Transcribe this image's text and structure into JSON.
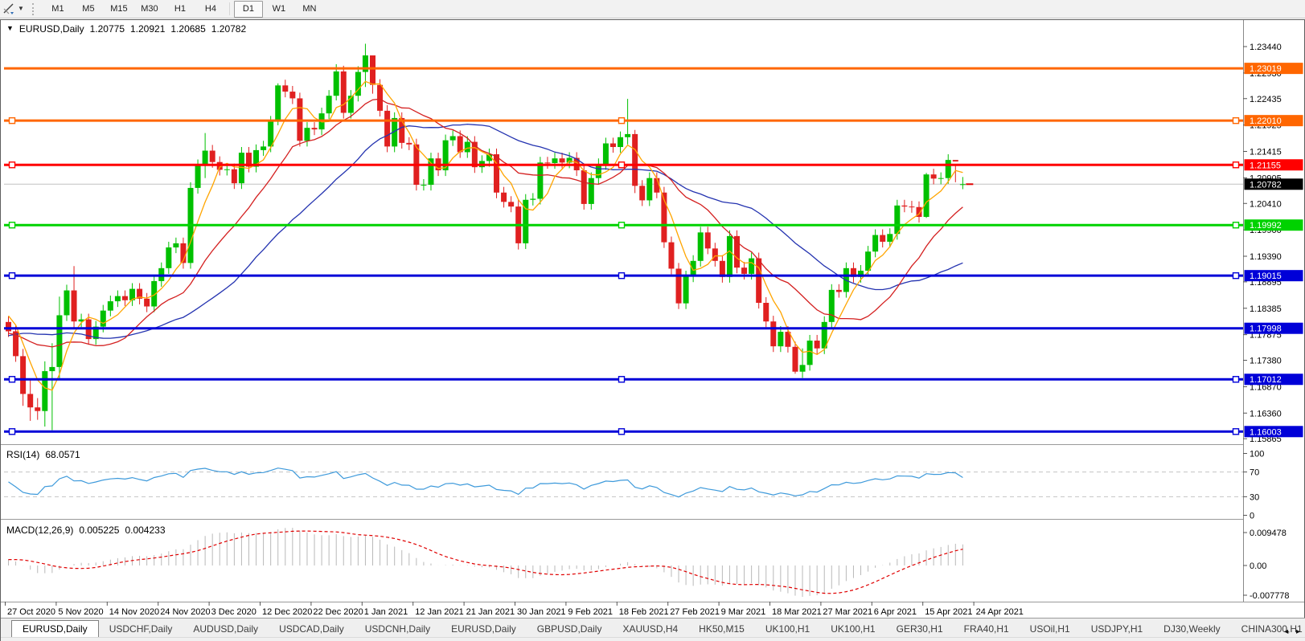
{
  "toolbar": {
    "tool_button": {
      "icon": "trendline-tool-icon",
      "dropdown_arrow": "▼"
    },
    "timeframes": [
      {
        "label": "M1",
        "active": false
      },
      {
        "label": "M5",
        "active": false
      },
      {
        "label": "M15",
        "active": false
      },
      {
        "label": "M30",
        "active": false
      },
      {
        "label": "H1",
        "active": false
      },
      {
        "label": "H4",
        "active": false
      },
      {
        "label": "D1",
        "active": true
      },
      {
        "label": "W1",
        "active": false
      },
      {
        "label": "MN",
        "active": false
      }
    ]
  },
  "chart_window": {
    "title": {
      "dropdown_arrow": "▼",
      "symbol_period": "EURUSD,Daily",
      "open": "1.20775",
      "high": "1.20921",
      "low": "1.20685",
      "close": "1.20782"
    }
  },
  "indicators": {
    "rsi": {
      "label": "RSI(14)",
      "value": "68.0571",
      "axis_labels": [
        "100",
        "70",
        "30",
        "0"
      ],
      "axis_values": [
        100,
        70,
        30,
        0
      ],
      "levels": [
        70,
        30
      ],
      "range": [
        0,
        100
      ],
      "line_color": "#3e9adb"
    },
    "macd": {
      "label": "MACD(12,26,9)",
      "main_value": "0.005225",
      "signal_value": "0.004233",
      "axis_labels": [
        "0.009478",
        "0.00",
        "-0.007778"
      ],
      "hist_color": "#b9b9b9",
      "signal_color": "#e00000"
    }
  },
  "chart_data": {
    "type": "candlestick",
    "symbol": "EURUSD",
    "period": "Daily",
    "up_color": "#00c000",
    "down_color": "#e02020",
    "ylim": [
      1.1579,
      1.2389
    ],
    "price_axis_ticks": [
      "1.23440",
      "1.22930",
      "1.22435",
      "1.21925",
      "1.21415",
      "1.20905",
      "1.20410",
      "1.19900",
      "1.19390",
      "1.18895",
      "1.18385",
      "1.17875",
      "1.17380",
      "1.16870",
      "1.16360",
      "1.15865"
    ],
    "x_labels": [
      "27 Oct 2020",
      "5 Nov 2020",
      "14 Nov 2020",
      "24 Nov 2020",
      "3 Dec 2020",
      "12 Dec 2020",
      "22 Dec 2020",
      "1 Jan 2021",
      "12 Jan 2021",
      "21 Jan 2021",
      "30 Jan 2021",
      "9 Feb 2021",
      "18 Feb 2021",
      "27 Feb 2021",
      "9 Mar 2021",
      "18 Mar 2021",
      "27 Mar 2021",
      "6 Apr 2021",
      "15 Apr 2021",
      "24 Apr 2021"
    ],
    "current_bar": {
      "open": 1.20775,
      "high": 1.20921,
      "low": 1.20685,
      "close": 1.20782
    },
    "first_open": 1.1812,
    "default_wick": 0.0011,
    "closes": [
      1.1794,
      1.1746,
      1.1673,
      1.1647,
      1.164,
      1.1717,
      1.1725,
      1.1825,
      1.1873,
      1.1813,
      1.1817,
      1.1779,
      1.1803,
      1.1834,
      1.1852,
      1.1862,
      1.1854,
      1.1876,
      1.1857,
      1.1842,
      1.1891,
      1.1916,
      1.1956,
      1.1964,
      1.1926,
      1.2071,
      1.2115,
      1.2143,
      1.2121,
      1.2106,
      1.2107,
      1.208,
      1.2139,
      1.2112,
      1.2144,
      1.2151,
      1.2199,
      1.2269,
      1.2257,
      1.2244,
      1.2162,
      1.2187,
      1.2184,
      1.2215,
      1.2249,
      1.2296,
      1.2216,
      1.2249,
      1.2295,
      1.2327,
      1.227,
      1.222,
      1.2151,
      1.2206,
      1.2158,
      1.2155,
      1.2077,
      1.2077,
      1.2128,
      1.2105,
      1.2163,
      1.2171,
      1.214,
      1.216,
      1.2111,
      1.2123,
      1.2136,
      1.2062,
      1.2044,
      1.2035,
      1.1964,
      1.2048,
      1.205,
      1.212,
      1.2119,
      1.2128,
      1.212,
      1.2129,
      1.2105,
      1.204,
      1.209,
      1.2117,
      1.2157,
      1.215,
      1.2169,
      1.2175,
      1.2075,
      1.2047,
      1.209,
      1.2062,
      1.1966,
      1.1915,
      1.1848,
      1.19,
      1.193,
      1.1985,
      1.1954,
      1.193,
      1.1899,
      1.1978,
      1.1917,
      1.1905,
      1.1935,
      1.1849,
      1.1813,
      1.1765,
      1.1793,
      1.1764,
      1.1716,
      1.1729,
      1.1776,
      1.1761,
      1.1812,
      1.1874,
      1.187,
      1.1916,
      1.1899,
      1.1911,
      1.1948,
      1.198,
      1.1967,
      1.1982,
      1.2037,
      1.2035,
      1.2034,
      1.2015,
      1.2097,
      1.2089,
      1.209,
      1.2125,
      1.2122,
      1.20782
    ],
    "wick_overrides": {
      "2": [
        1.176,
        1.165
      ],
      "3": [
        1.17,
        1.1621
      ],
      "4": [
        1.1665,
        1.1623
      ],
      "5": [
        1.1736,
        1.161
      ],
      "6": [
        1.1771,
        1.1603
      ],
      "7": [
        1.1861,
        1.17
      ],
      "9": [
        1.192,
        1.1798
      ],
      "27": [
        1.2177,
        1.209
      ],
      "37": [
        1.2273,
        1.2192
      ],
      "45": [
        1.231,
        1.224
      ],
      "49": [
        1.23495,
        1.2266
      ],
      "50": [
        1.2325,
        1.2253
      ],
      "70": [
        1.2049,
        1.1952
      ],
      "85": [
        1.2243,
        1.2155
      ],
      "86": [
        1.2183,
        1.2061
      ],
      "108": [
        1.1774,
        1.1712
      ],
      "109": [
        1.1761,
        1.1704
      ],
      "126": [
        1.21,
        1.2013
      ],
      "130": [
        1.2117,
        1.2082
      ]
    },
    "seed_closes": [
      1.17,
      1.166,
      1.162,
      1.165,
      1.169,
      1.172,
      1.175,
      1.178,
      1.181,
      1.184,
      1.186,
      1.188,
      1.19,
      1.188,
      1.185,
      1.182,
      1.179,
      1.177,
      1.175,
      1.173,
      1.1745,
      1.176,
      1.1775,
      1.179,
      1.1805,
      1.182,
      1.1835,
      1.185,
      1.183,
      1.181
    ],
    "moving_averages": [
      {
        "name": "ma-fast",
        "period": 5,
        "color": "#ffa500"
      },
      {
        "name": "ma-medium",
        "period": 15,
        "color": "#d42020"
      },
      {
        "name": "ma-slow",
        "period": 30,
        "color": "#2433b0"
      }
    ],
    "horizontal_lines": [
      {
        "price": 1.23019,
        "label": "1.23019",
        "color": "#ff6600",
        "selected": false
      },
      {
        "price": 1.2201,
        "label": "1.22010",
        "color": "#ff6600",
        "selected": true
      },
      {
        "price": 1.21155,
        "label": "1.21155",
        "color": "#ff0000",
        "selected": true
      },
      {
        "price": 1.19992,
        "label": "1.19992",
        "color": "#00d200",
        "selected": true
      },
      {
        "price": 1.19015,
        "label": "1.19015",
        "color": "#0000d8",
        "selected": true
      },
      {
        "price": 1.17998,
        "label": "1.17998",
        "color": "#0000d8",
        "selected": false
      },
      {
        "price": 1.17012,
        "label": "1.17012",
        "color": "#0000d8",
        "selected": true
      },
      {
        "price": 1.16003,
        "label": "1.16003",
        "color": "#0000d8",
        "selected": true
      }
    ],
    "last_close_line": {
      "price": 1.20782,
      "label": "1.20782",
      "line_color": "#c0c0c0",
      "box_color": "#000000"
    },
    "rsi_period": 14,
    "macd_params": [
      12,
      26,
      9
    ]
  },
  "tabs": {
    "items": [
      {
        "label": "EURUSD,Daily",
        "active": true
      },
      {
        "label": "USDCHF,Daily",
        "active": false
      },
      {
        "label": "AUDUSD,Daily",
        "active": false
      },
      {
        "label": "USDCAD,Daily",
        "active": false
      },
      {
        "label": "USDCNH,Daily",
        "active": false
      },
      {
        "label": "EURUSD,Daily",
        "active": false
      },
      {
        "label": "GBPUSD,Daily",
        "active": false
      },
      {
        "label": "XAUUSD,H4",
        "active": false
      },
      {
        "label": "HK50,M15",
        "active": false
      },
      {
        "label": "UK100,H1",
        "active": false
      },
      {
        "label": "UK100,H1",
        "active": false
      },
      {
        "label": "GER30,H1",
        "active": false
      },
      {
        "label": "FRA40,H1",
        "active": false
      },
      {
        "label": "USOil,H1",
        "active": false
      },
      {
        "label": "USDJPY,H1",
        "active": false
      },
      {
        "label": "DJ30,Weekly",
        "active": false
      },
      {
        "label": "CHINA300,H1",
        "active": false
      },
      {
        "label": "U",
        "active": false
      }
    ],
    "scroll_left": "◂",
    "scroll_right": "▸"
  }
}
